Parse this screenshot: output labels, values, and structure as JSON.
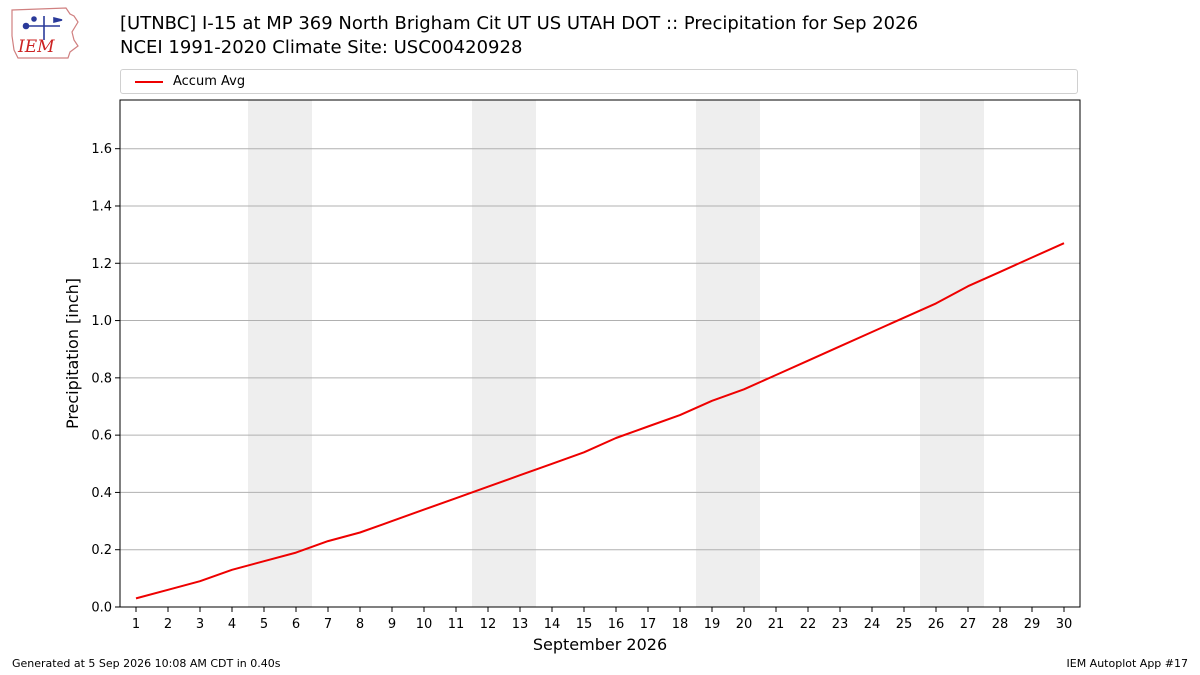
{
  "header": {
    "logo_text": "IEM",
    "title_line1": "[UTNBC] I-15 at MP 369 North Brigham Cit UT US UTAH DOT :: Precipitation for Sep 2026",
    "title_line2": "NCEI 1991-2020 Climate Site: USC00420928"
  },
  "legend": {
    "entry": "Accum Avg",
    "color": "#ee0000"
  },
  "footer": {
    "generated": "Generated at 5 Sep 2026 10:08 AM CDT in 0.40s",
    "app": "IEM Autoplot App #17"
  },
  "chart_data": {
    "type": "line",
    "title": "[UTNBC] I-15 at MP 369 North Brigham Cit UT US UTAH DOT :: Precipitation for Sep 2026",
    "subtitle": "NCEI 1991-2020 Climate Site: USC00420928",
    "xlabel": "September 2026",
    "ylabel": "Precipitation [inch]",
    "x": [
      1,
      2,
      3,
      4,
      5,
      6,
      7,
      8,
      9,
      10,
      11,
      12,
      13,
      14,
      15,
      16,
      17,
      18,
      19,
      20,
      21,
      22,
      23,
      24,
      25,
      26,
      27,
      28,
      29,
      30
    ],
    "xlim": [
      0.5,
      30.5
    ],
    "ylim": [
      0,
      1.77
    ],
    "yticks": [
      0.0,
      0.2,
      0.4,
      0.6,
      0.8,
      1.0,
      1.2,
      1.4,
      1.6
    ],
    "ytick_labels": [
      "0.0",
      "0.2",
      "0.4",
      "0.6",
      "0.8",
      "1.0",
      "1.2",
      "1.4",
      "1.6"
    ],
    "grid": "y",
    "legend_position": "top",
    "weekend_bands": [
      [
        5,
        6
      ],
      [
        12,
        13
      ],
      [
        19,
        20
      ],
      [
        26,
        27
      ]
    ],
    "band_color": "#eeeeee",
    "series": [
      {
        "name": "Accum Avg",
        "color": "#ee0000",
        "values": [
          0.03,
          0.06,
          0.09,
          0.13,
          0.16,
          0.19,
          0.23,
          0.26,
          0.3,
          0.34,
          0.38,
          0.42,
          0.46,
          0.5,
          0.54,
          0.59,
          0.63,
          0.67,
          0.72,
          0.76,
          0.81,
          0.86,
          0.91,
          0.96,
          1.01,
          1.06,
          1.12,
          1.17,
          1.22,
          1.27
        ]
      }
    ]
  }
}
